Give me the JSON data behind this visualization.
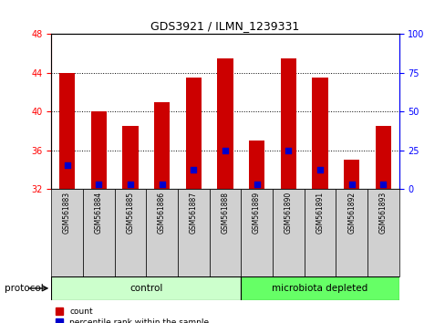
{
  "title": "GDS3921 / ILMN_1239331",
  "samples": [
    "GSM561883",
    "GSM561884",
    "GSM561885",
    "GSM561886",
    "GSM561887",
    "GSM561888",
    "GSM561889",
    "GSM561890",
    "GSM561891",
    "GSM561892",
    "GSM561893"
  ],
  "count_values": [
    44.0,
    40.0,
    38.5,
    41.0,
    43.5,
    45.5,
    37.0,
    45.5,
    43.5,
    35.0,
    38.5
  ],
  "percentile_values": [
    34.5,
    32.5,
    32.5,
    32.5,
    34.0,
    36.0,
    32.5,
    36.0,
    34.0,
    32.5,
    32.5
  ],
  "ylim_left": [
    32,
    48
  ],
  "ylim_right": [
    0,
    100
  ],
  "yticks_left": [
    32,
    36,
    40,
    44,
    48
  ],
  "yticks_right": [
    0,
    25,
    50,
    75,
    100
  ],
  "bar_color": "#cc0000",
  "percentile_color": "#0000cc",
  "bar_width": 0.5,
  "control_indices": [
    0,
    1,
    2,
    3,
    4,
    5
  ],
  "microbiota_indices": [
    6,
    7,
    8,
    9,
    10
  ],
  "control_color": "#ccffcc",
  "microbiota_color": "#66ff66",
  "label_area_color": "#d0d0d0",
  "grid_color": "black"
}
